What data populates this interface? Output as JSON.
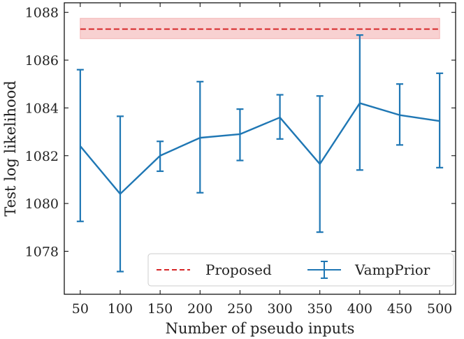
{
  "chart_data": {
    "type": "line",
    "xlabel": "Number of pseudo inputs",
    "ylabel": "Test log likelihood",
    "x": [
      50,
      100,
      150,
      200,
      250,
      300,
      350,
      400,
      450,
      500
    ],
    "xlim": [
      30,
      520
    ],
    "ylim": [
      1076.2,
      1088.4
    ],
    "yticks": [
      1078,
      1080,
      1082,
      1084,
      1086,
      1088
    ],
    "grid": false,
    "legend_position": "bottom-right",
    "series": [
      {
        "name": "VampPrior",
        "style": "line-errorbar",
        "color": "#1f77b4",
        "values": [
          1082.4,
          1080.4,
          1082.0,
          1082.75,
          1082.9,
          1083.6,
          1081.65,
          1084.2,
          1083.7,
          1083.45
        ],
        "lower": [
          1079.25,
          1077.15,
          1081.35,
          1080.45,
          1081.8,
          1082.7,
          1078.8,
          1081.4,
          1082.45,
          1081.5
        ],
        "upper": [
          1085.6,
          1083.65,
          1082.6,
          1085.1,
          1083.95,
          1084.55,
          1084.5,
          1087.05,
          1085.0,
          1085.45
        ]
      },
      {
        "name": "Proposed",
        "style": "dashed-band",
        "color": "#d62728",
        "band_color": "#f4b3b3",
        "value": 1087.3,
        "band": [
          1086.9,
          1087.75
        ]
      }
    ]
  }
}
